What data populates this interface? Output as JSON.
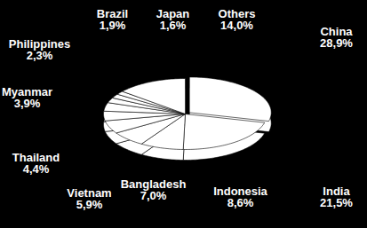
{
  "chart_data": {
    "type": "pie",
    "categories": [
      "China",
      "India",
      "Indonesia",
      "Bangladesh",
      "Vietnam",
      "Thailand",
      "Myanmar",
      "Philippines",
      "Brazil",
      "Japan",
      "Others"
    ],
    "values": [
      28.9,
      21.5,
      8.6,
      7.0,
      5.9,
      4.4,
      3.9,
      2.3,
      1.9,
      1.6,
      14.0
    ],
    "value_labels": [
      "28,9%",
      "21,5%",
      "8,6%",
      "7,0%",
      "5,9%",
      "4,4%",
      "3,9%",
      "2,3%",
      "1,9%",
      "1,6%",
      "14,0%"
    ],
    "data_labels": true,
    "color": "#ffffff"
  }
}
